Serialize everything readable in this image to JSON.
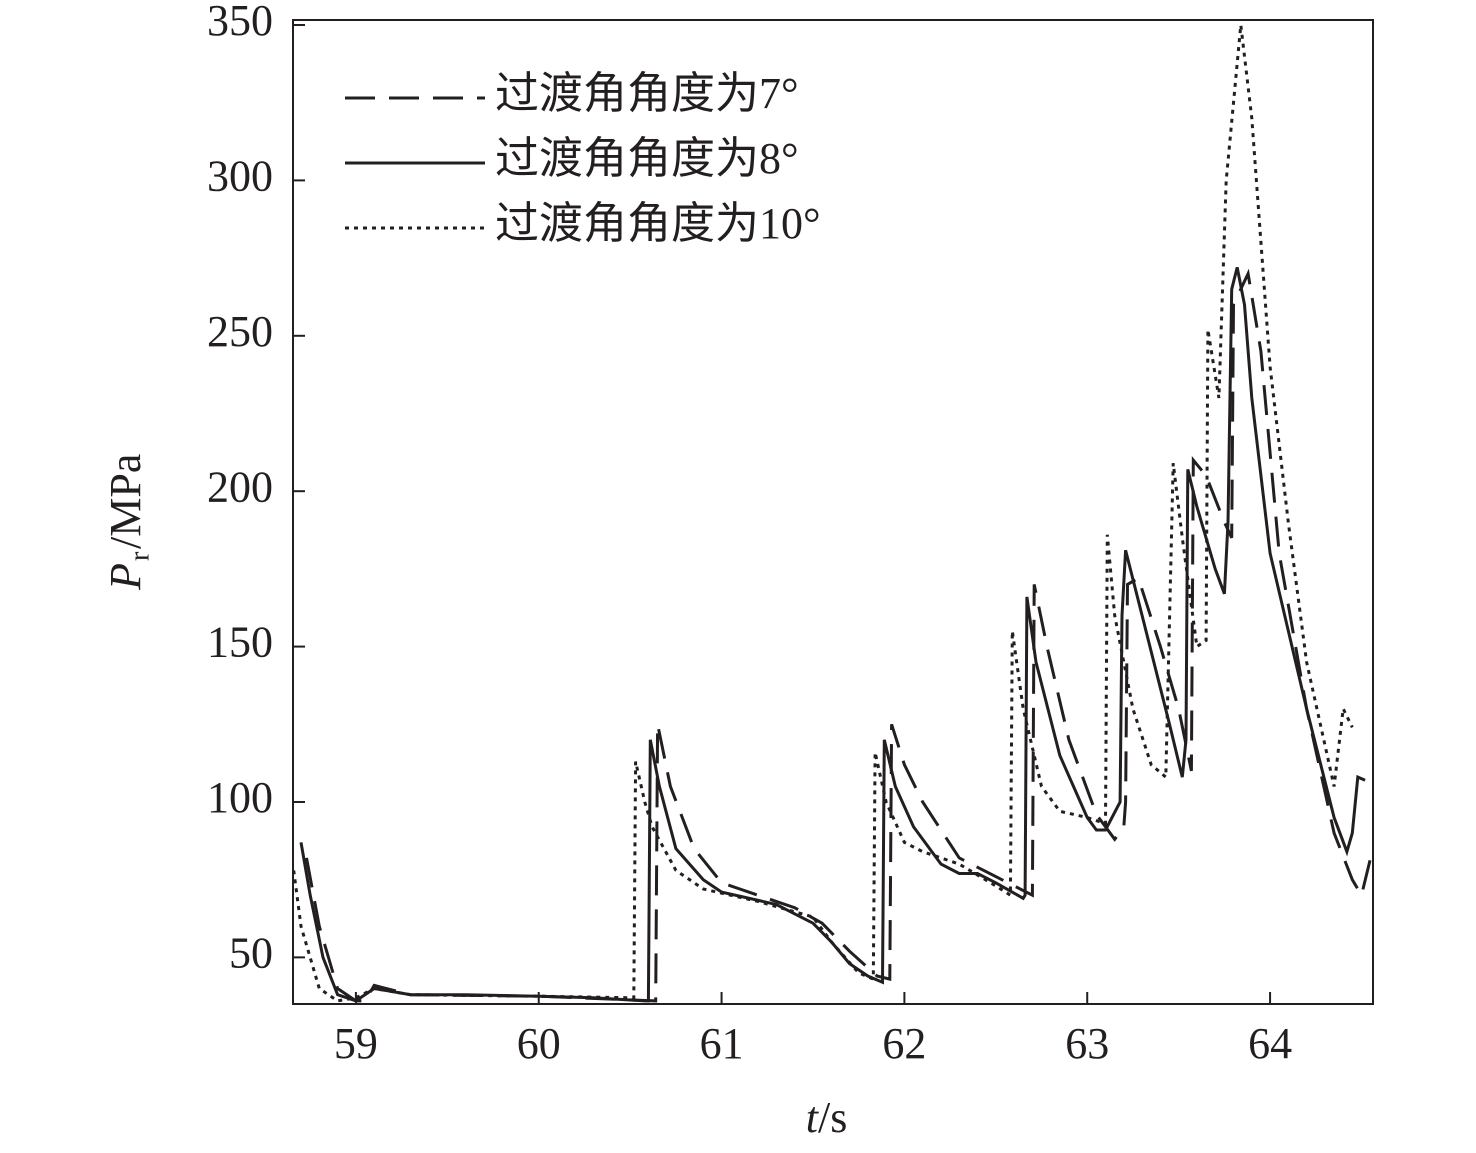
{
  "chart_data": {
    "type": "line",
    "x_label": {
      "symbol": "t",
      "unit": "/s"
    },
    "y_label": {
      "symbol": "P",
      "subscript": "r",
      "unit": "/MPa"
    },
    "xlim": [
      58.656,
      64.563
    ],
    "ylim": [
      35,
      350
    ],
    "xticks": [
      59,
      60,
      61,
      62,
      63,
      64
    ],
    "yticks": [
      50,
      100,
      150,
      200,
      250,
      300,
      350
    ],
    "grid": false,
    "legend": "upper left",
    "series": [
      {
        "name": "过渡角角度为7°",
        "color": "#231f20",
        "linestyle": "dashed",
        "x": [
          58.73,
          58.8,
          58.9,
          59.0,
          59.05,
          59.1,
          59.3,
          60.0,
          60.64,
          60.65,
          60.72,
          60.85,
          61.0,
          61.1,
          61.4,
          61.55,
          61.7,
          61.85,
          61.92,
          61.93,
          62.0,
          62.1,
          62.3,
          62.5,
          62.7,
          62.71,
          62.78,
          62.9,
          63.05,
          63.15,
          63.2,
          63.21,
          63.22,
          63.28,
          63.4,
          63.5,
          63.57,
          63.58,
          63.65,
          63.75,
          63.79,
          63.8,
          63.88,
          63.95,
          64.05,
          64.2,
          64.35,
          64.45,
          64.5,
          64.55
        ],
        "values": [
          82,
          60,
          40,
          36,
          36,
          41,
          38,
          37.5,
          36,
          125,
          105,
          85,
          74,
          72,
          66,
          61,
          52,
          44,
          43,
          125,
          112,
          100,
          82,
          76,
          70,
          170,
          150,
          120,
          96,
          88,
          92,
          100,
          170,
          172,
          150,
          130,
          110,
          210,
          205,
          190,
          185,
          260,
          270,
          245,
          180,
          130,
          90,
          75,
          70,
          82
        ]
      },
      {
        "name": "过渡角角度为8°",
        "color": "#231f20",
        "linestyle": "solid",
        "x": [
          58.7,
          58.75,
          58.82,
          58.9,
          59.0,
          59.1,
          59.3,
          59.6,
          60.0,
          60.3,
          60.58,
          60.6,
          60.61,
          60.66,
          60.75,
          60.9,
          61.0,
          61.3,
          61.5,
          61.6,
          61.7,
          61.8,
          61.88,
          61.89,
          61.95,
          62.05,
          62.2,
          62.3,
          62.4,
          62.5,
          62.65,
          62.66,
          62.67,
          62.72,
          62.85,
          63.0,
          63.05,
          63.1,
          63.18,
          63.19,
          63.21,
          63.3,
          63.45,
          63.52,
          63.54,
          63.55,
          63.6,
          63.7,
          63.75,
          63.77,
          63.79,
          63.82,
          63.86,
          63.9,
          64.0,
          64.2,
          64.35,
          64.42,
          64.45,
          64.48,
          64.52
        ],
        "values": [
          87,
          70,
          50,
          38,
          36,
          40,
          38,
          38,
          37.5,
          37,
          36,
          36,
          120,
          105,
          85,
          75,
          71,
          67,
          61,
          55,
          48,
          44,
          42,
          120,
          105,
          92,
          80,
          77,
          77,
          74,
          69,
          70,
          166,
          145,
          115,
          95,
          91,
          91,
          100,
          160,
          181,
          160,
          125,
          108,
          120,
          207,
          195,
          175,
          167,
          190,
          265,
          272,
          260,
          230,
          180,
          130,
          95,
          84,
          90,
          108,
          107
        ]
      },
      {
        "name": "过渡角角度为10°",
        "color": "#231f20",
        "linestyle": "dotted",
        "x": [
          58.66,
          58.7,
          58.8,
          58.9,
          59.0,
          59.1,
          59.3,
          60.0,
          60.52,
          60.53,
          60.58,
          60.62,
          60.75,
          60.9,
          61.2,
          61.5,
          61.6,
          61.75,
          61.83,
          61.84,
          61.9,
          62.0,
          62.1,
          62.3,
          62.5,
          62.58,
          62.59,
          62.65,
          62.75,
          62.85,
          63.0,
          63.1,
          63.11,
          63.15,
          63.25,
          63.35,
          63.43,
          63.47,
          63.52,
          63.6,
          63.65,
          63.66,
          63.72,
          63.76,
          63.84,
          63.9,
          64.0,
          64.1,
          64.2,
          64.35,
          64.4,
          64.45
        ],
        "values": [
          78,
          60,
          40,
          36,
          37,
          40,
          38,
          37.5,
          37,
          113,
          100,
          92,
          78,
          72,
          68,
          63,
          55,
          45,
          43,
          116,
          100,
          87,
          84,
          80,
          73,
          70,
          155,
          130,
          105,
          97,
          95,
          93,
          186,
          160,
          130,
          112,
          108,
          209,
          185,
          150,
          152,
          252,
          230,
          300,
          350,
          320,
          240,
          190,
          145,
          105,
          130,
          124
        ]
      }
    ]
  }
}
